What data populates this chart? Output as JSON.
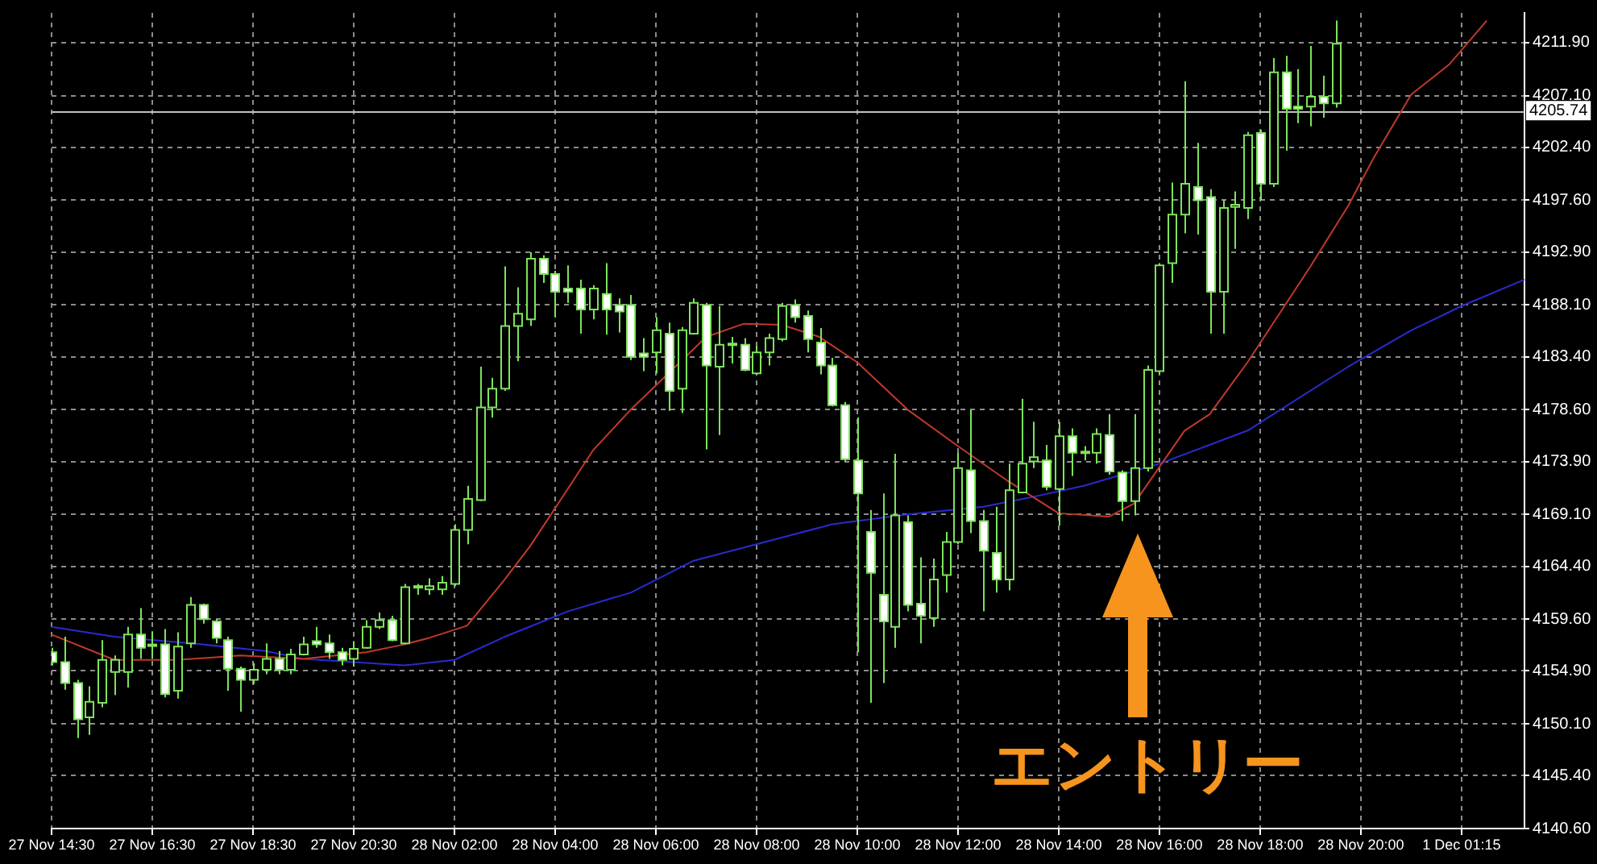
{
  "chart_data": {
    "type": "candlestick",
    "categories": [
      "27 Nov 14:30",
      null,
      null,
      null,
      null,
      null,
      null,
      null,
      "27 Nov 16:30",
      null,
      null,
      null,
      null,
      null,
      null,
      null,
      "27 Nov 18:30",
      null,
      null,
      null,
      null,
      null,
      null,
      null,
      "27 Nov 20:30",
      null,
      null,
      null,
      null,
      null,
      null,
      null,
      "28 Nov 02:00",
      null,
      null,
      null,
      null,
      null,
      null,
      null,
      "28 Nov 04:00",
      null,
      null,
      null,
      null,
      null,
      null,
      null,
      "28 Nov 06:00",
      null,
      null,
      null,
      null,
      null,
      null,
      null,
      "28 Nov 08:00",
      null,
      null,
      null,
      null,
      null,
      null,
      null,
      "28 Nov 10:00",
      null,
      null,
      null,
      null,
      null,
      null,
      null,
      "28 Nov 12:00",
      null,
      null,
      null,
      null,
      null,
      null,
      null,
      "28 Nov 14:00",
      null,
      null,
      null,
      null,
      null,
      null,
      null,
      "28 Nov 16:00",
      null,
      null,
      null,
      null,
      null,
      null,
      null,
      "28 Nov 18:00",
      null,
      null,
      null,
      null,
      null,
      null,
      null,
      "28 Nov 20:00",
      null,
      null,
      null,
      null,
      null,
      null,
      null,
      "1 Dec 01:15",
      null,
      null,
      null,
      null,
      null
    ],
    "color": "#7de35a",
    "colors": [
      "#ffffff",
      "#ffffff",
      "#ffffff",
      "#000000",
      "#000000",
      "#000000",
      "#000000",
      "#ffffff",
      "#ffffff",
      "#ffffff",
      "#000000",
      "#000000",
      "#ffffff",
      "#ffffff",
      "#ffffff",
      "#ffffff",
      "#000000",
      "#000000",
      "#ffffff",
      "#000000",
      "#000000",
      "#ffffff",
      "#ffffff",
      "#ffffff",
      "#000000",
      "#000000",
      "#000000",
      "#ffffff",
      "#000000",
      "#000000",
      "#000000",
      "#000000",
      "#000000",
      "#000000",
      "#000000",
      "#000000",
      "#000000",
      "#000000",
      "#000000",
      "#ffffff",
      "#ffffff",
      "#ffffff",
      "#ffffff",
      "#000000",
      "#ffffff",
      "#ffffff",
      "#ffffff",
      "#ffffff",
      "#000000",
      "#ffffff",
      "#000000",
      "#000000",
      "#ffffff",
      "#000000",
      "#000000",
      "#ffffff",
      "#000000",
      "#000000",
      "#000000",
      "#ffffff",
      "#ffffff",
      "#ffffff",
      "#ffffff",
      "#ffffff",
      "#ffffff",
      "#ffffff",
      "#ffffff",
      "#000000",
      "#ffffff",
      "#ffffff",
      "#000000",
      "#000000",
      "#000000",
      "#ffffff",
      "#ffffff",
      "#ffffff",
      "#000000",
      "#000000",
      "#000000",
      "#ffffff",
      "#000000",
      "#ffffff",
      "#ffffff",
      "#000000",
      "#ffffff",
      "#ffffff",
      "#000000",
      "#000000",
      "#000000",
      "#000000",
      "#000000",
      "#ffffff",
      "#ffffff",
      "#000000",
      "#000000",
      "#000000",
      "#ffffff",
      "#000000",
      "#ffffff",
      "#ffffff",
      "#000000",
      "#ffffff",
      "#000000",
      null,
      null,
      null,
      null,
      null,
      null,
      null,
      null,
      null,
      null,
      null,
      null,
      null,
      null,
      null
    ],
    "ohlc": [
      [
        4156.6,
        4157.0,
        4155.4,
        4155.7
      ],
      [
        4155.7,
        4158.0,
        4153.2,
        4153.8
      ],
      [
        4153.8,
        4154.1,
        4148.8,
        4150.5
      ],
      [
        4150.7,
        4153.5,
        4149.1,
        4152.1
      ],
      [
        4152.0,
        4157.7,
        4151.6,
        4155.9
      ],
      [
        4154.8,
        4156.3,
        4152.7,
        4155.9
      ],
      [
        4154.8,
        4158.9,
        4153.4,
        4158.2
      ],
      [
        4158.2,
        4160.6,
        4156.0,
        4157.0
      ],
      [
        4157.3,
        4158.5,
        4156.0,
        4157.2
      ],
      [
        4157.3,
        4158.7,
        4152.5,
        4152.8
      ],
      [
        4153.1,
        4158.4,
        4152.4,
        4157.1
      ],
      [
        4157.4,
        4161.6,
        4157.0,
        4160.9
      ],
      [
        4160.9,
        4161.0,
        4159.2,
        4159.6
      ],
      [
        4159.4,
        4159.6,
        4157.4,
        4157.9
      ],
      [
        4157.7,
        4158.0,
        4153.1,
        4155.1
      ],
      [
        4155.1,
        4155.3,
        4151.2,
        4154.1
      ],
      [
        4154.1,
        4155.6,
        4153.7,
        4155.0
      ],
      [
        4155.0,
        4157.4,
        4154.6,
        4156.0
      ],
      [
        4156.0,
        4156.7,
        4154.6,
        4155.0
      ],
      [
        4155.0,
        4156.9,
        4154.6,
        4156.4
      ],
      [
        4156.4,
        4158.0,
        4156.3,
        4157.3
      ],
      [
        4157.6,
        4158.9,
        4157.0,
        4157.3
      ],
      [
        4157.4,
        4158.2,
        4156.0,
        4156.6
      ],
      [
        4156.6,
        4157.0,
        4155.4,
        4155.9
      ],
      [
        4156.0,
        4157.6,
        4155.3,
        4156.9
      ],
      [
        4157.0,
        4159.5,
        4156.9,
        4158.9
      ],
      [
        4158.9,
        4160.2,
        4158.7,
        4159.5
      ],
      [
        4159.5,
        4159.9,
        4157.6,
        4157.7
      ],
      [
        4157.4,
        4162.8,
        4157.3,
        4162.5
      ],
      [
        4162.5,
        4162.8,
        4161.8,
        4162.6
      ],
      [
        4162.3,
        4163.3,
        4161.8,
        4162.6
      ],
      [
        4162.3,
        4163.5,
        4161.8,
        4162.9
      ],
      [
        4162.8,
        4168.2,
        4162.6,
        4167.7
      ],
      [
        4167.7,
        4171.7,
        4166.4,
        4170.5
      ],
      [
        4170.4,
        4182.5,
        4170.3,
        4178.8
      ],
      [
        4178.8,
        4181.5,
        4177.9,
        4180.5
      ],
      [
        4180.5,
        4191.6,
        4180.3,
        4186.2
      ],
      [
        4186.2,
        4189.7,
        4183.0,
        4187.3
      ],
      [
        4186.8,
        4192.9,
        4186.2,
        4192.3
      ],
      [
        4192.3,
        4192.6,
        4190.1,
        4190.9
      ],
      [
        4190.9,
        4191.2,
        4187.0,
        4189.3
      ],
      [
        4189.6,
        4191.7,
        4188.3,
        4189.3
      ],
      [
        4189.6,
        4190.4,
        4185.5,
        4187.7
      ],
      [
        4187.7,
        4189.9,
        4186.8,
        4189.6
      ],
      [
        4189.1,
        4191.9,
        4185.4,
        4187.7
      ],
      [
        4188.1,
        4188.7,
        4185.6,
        4187.5
      ],
      [
        4188.1,
        4189.0,
        4183.1,
        4183.4
      ],
      [
        4183.7,
        4185.1,
        4182.1,
        4183.4
      ],
      [
        4183.8,
        4187.0,
        4181.9,
        4185.8
      ],
      [
        4185.5,
        4186.5,
        4178.5,
        4180.3
      ],
      [
        4180.5,
        4186.1,
        4178.3,
        4185.8
      ],
      [
        4185.5,
        4188.7,
        4185.4,
        4188.3
      ],
      [
        4188.1,
        4188.3,
        4175.0,
        4182.6
      ],
      [
        4182.5,
        4188.0,
        4176.3,
        4184.5
      ],
      [
        4184.5,
        4185.2,
        4182.8,
        4184.6
      ],
      [
        4184.5,
        4185.1,
        4182.1,
        4182.2
      ],
      [
        4181.9,
        4184.4,
        4181.8,
        4183.8
      ],
      [
        4183.8,
        4185.5,
        4182.6,
        4185.1
      ],
      [
        4185.0,
        4188.3,
        4184.8,
        4188.0
      ],
      [
        4188.1,
        4188.6,
        4186.5,
        4187.0
      ],
      [
        4187.1,
        4187.6,
        4183.8,
        4185.0
      ],
      [
        4184.7,
        4186.0,
        4181.8,
        4182.6
      ],
      [
        4182.6,
        4183.3,
        4178.9,
        4179.0
      ],
      [
        4179.0,
        4179.3,
        4173.9,
        4174.1
      ],
      [
        4174.0,
        4177.9,
        4156.6,
        4171.0
      ],
      [
        4167.5,
        4169.5,
        4152.0,
        4163.8
      ],
      [
        4161.8,
        4171.0,
        4153.8,
        4159.4
      ],
      [
        4158.9,
        4174.6,
        4157.0,
        4169.0
      ],
      [
        4168.4,
        4169.0,
        4160.3,
        4160.9
      ],
      [
        4161.0,
        4165.2,
        4157.4,
        4159.9
      ],
      [
        4159.7,
        4165.1,
        4158.9,
        4163.2
      ],
      [
        4163.6,
        4167.5,
        4162.0,
        4166.6
      ],
      [
        4166.6,
        4174.7,
        4166.4,
        4173.3
      ],
      [
        4173.1,
        4178.6,
        4167.4,
        4168.5
      ],
      [
        4168.5,
        4169.5,
        4160.3,
        4165.8
      ],
      [
        4165.6,
        4169.8,
        4162.0,
        4163.2
      ],
      [
        4163.2,
        4173.7,
        4162.2,
        4171.3
      ],
      [
        4171.1,
        4179.6,
        4171.0,
        4173.7
      ],
      [
        4173.9,
        4177.5,
        4173.3,
        4174.3
      ],
      [
        4174.0,
        4175.4,
        4171.3,
        4171.6
      ],
      [
        4171.4,
        4177.5,
        4168.1,
        4176.2
      ],
      [
        4176.2,
        4176.9,
        4172.6,
        4174.7
      ],
      [
        4174.8,
        4175.3,
        4174.0,
        4174.7
      ],
      [
        4174.7,
        4176.9,
        4173.7,
        4176.4
      ],
      [
        4176.3,
        4178.2,
        4172.7,
        4173.0
      ],
      [
        4172.9,
        4173.1,
        4168.5,
        4170.3
      ],
      [
        4170.3,
        4178.2,
        4169.0,
        4173.3
      ],
      [
        4173.3,
        4182.6,
        4173.0,
        4182.2
      ],
      [
        4182.1,
        4191.9,
        4181.8,
        4191.7
      ],
      [
        4191.9,
        4199.2,
        4190.1,
        4196.3
      ],
      [
        4196.3,
        4208.4,
        4194.6,
        4199.1
      ],
      [
        4198.8,
        4202.8,
        4194.5,
        4197.6
      ],
      [
        4197.9,
        4198.6,
        4185.5,
        4189.3
      ],
      [
        4189.3,
        4197.6,
        4185.5,
        4196.9
      ],
      [
        4197.0,
        4198.4,
        4193.2,
        4197.2
      ],
      [
        4196.9,
        4203.8,
        4195.9,
        4203.5
      ],
      [
        4203.7,
        4204.0,
        4197.6,
        4199.1
      ],
      [
        4199.1,
        4210.5,
        4198.8,
        4209.2
      ],
      [
        4209.2,
        4210.7,
        4202.1,
        4205.9
      ],
      [
        4206.1,
        4209.5,
        4204.6,
        4205.9
      ],
      [
        4206.1,
        4211.6,
        4204.3,
        4207.0
      ],
      [
        4207.0,
        4208.9,
        4205.1,
        4206.4
      ],
      [
        4206.4,
        4213.9,
        4206.0,
        4211.8
      ],
      null,
      null,
      null,
      null,
      null,
      null,
      null,
      null,
      null,
      null,
      null,
      null,
      null,
      null,
      null
    ],
    "series": [
      {
        "type": "line",
        "color": "#c0392b",
        "values": [
          4158.2,
          null,
          null,
          null,
          null,
          4155.9,
          null,
          null,
          null,
          null,
          4155.9,
          null,
          null,
          null,
          null,
          4156.3,
          null,
          null,
          null,
          null,
          4156.0,
          null,
          null,
          null,
          null,
          4156.6,
          null,
          null,
          4157.3,
          null,
          4157.9,
          null,
          null,
          4159.0,
          null,
          null,
          4163.2,
          null,
          4166.2,
          null,
          null,
          4171.4,
          null,
          4174.9,
          null,
          null,
          4178.6,
          null,
          null,
          4181.9,
          null,
          null,
          4185.2,
          null,
          null,
          4186.4,
          null,
          null,
          4186.3,
          null,
          null,
          4185.2,
          null,
          null,
          4182.9,
          null,
          null,
          null,
          4178.6,
          null,
          null,
          null,
          4175.3,
          null,
          null,
          null,
          4172.1,
          null,
          null,
          null,
          4169.2,
          null,
          null,
          null,
          4168.9,
          null,
          4170.1,
          null,
          4173.4,
          null,
          4176.7,
          null,
          4178.2,
          null,
          null,
          4182.9,
          null,
          null,
          null,
          null,
          4191.6,
          null,
          null,
          4197.1,
          null,
          4201.4,
          null,
          null,
          4207.2,
          null,
          null,
          4209.9,
          null,
          null,
          4213.9,
          null,
          null,
          null
        ]
      },
      {
        "type": "line",
        "color": "#2a2ad0",
        "values": [
          4158.9,
          null,
          null,
          null,
          null,
          4158.0,
          null,
          null,
          null,
          null,
          null,
          null,
          4157.3,
          null,
          null,
          null,
          null,
          4156.7,
          null,
          null,
          4156.0,
          null,
          null,
          null,
          4155.7,
          null,
          null,
          null,
          4155.4,
          null,
          null,
          null,
          4155.9,
          null,
          null,
          null,
          4158.0,
          null,
          null,
          null,
          null,
          4160.3,
          null,
          null,
          null,
          null,
          4162.0,
          null,
          null,
          null,
          null,
          4164.9,
          null,
          null,
          null,
          null,
          4166.4,
          null,
          null,
          null,
          null,
          null,
          4168.2,
          null,
          null,
          null,
          null,
          null,
          4169.1,
          null,
          null,
          null,
          null,
          null,
          4169.8,
          null,
          null,
          null,
          4170.7,
          null,
          null,
          null,
          4171.7,
          null,
          null,
          null,
          null,
          null,
          4173.7,
          null,
          null,
          null,
          null,
          null,
          null,
          4176.7,
          null,
          null,
          null,
          null,
          null,
          null,
          null,
          4182.5,
          null,
          null,
          null,
          null,
          4185.8,
          null,
          null,
          null,
          4188.0,
          null,
          null,
          null,
          null,
          4190.4
        ]
      }
    ],
    "ylim": [
      4140.6,
      4214.6
    ],
    "yticks": [
      {
        "value": 4140.6,
        "label": "4140.60"
      },
      {
        "value": 4145.4,
        "label": "4145.40"
      },
      {
        "value": 4150.1,
        "label": "4150.10"
      },
      {
        "value": 4154.9,
        "label": "4154.90"
      },
      {
        "value": 4159.6,
        "label": "4159.60"
      },
      {
        "value": 4164.4,
        "label": "4164.40"
      },
      {
        "value": 4169.1,
        "label": "4169.10"
      },
      {
        "value": 4173.9,
        "label": "4173.90"
      },
      {
        "value": 4178.6,
        "label": "4178.60"
      },
      {
        "value": 4183.4,
        "label": "4183.40"
      },
      {
        "value": 4188.1,
        "label": "4188.10"
      },
      {
        "value": 4192.9,
        "label": "4192.90"
      },
      {
        "value": 4197.6,
        "label": "4197.60"
      },
      {
        "value": 4202.4,
        "label": "4202.40"
      },
      {
        "value": 4207.1,
        "label": "4207.10"
      },
      {
        "value": 4211.9,
        "label": "4211.90"
      }
    ],
    "grid": true,
    "legend": false,
    "marker": "none",
    "ref_lines": [
      {
        "axis": "y",
        "value": 4205.74,
        "label": "4205.74",
        "color": "#c0c0c0"
      }
    ],
    "annotations": [
      "エントリー"
    ]
  }
}
